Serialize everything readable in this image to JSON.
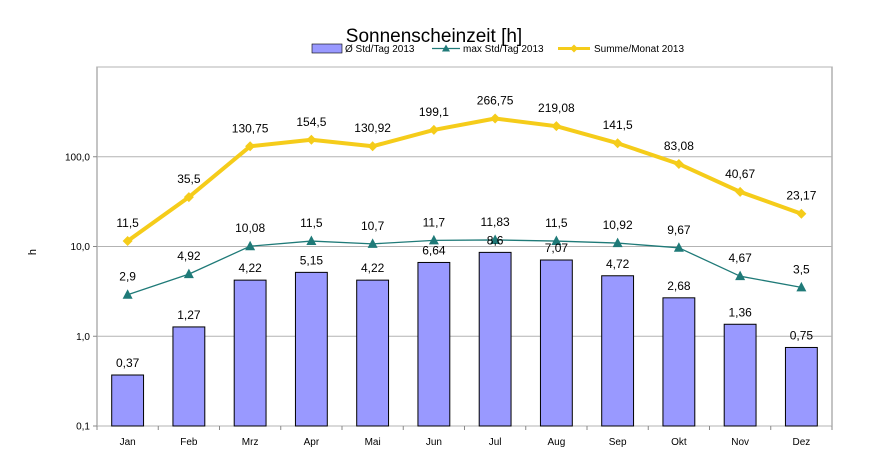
{
  "chart_data": {
    "type": "bar",
    "title": "Sonnenscheinzeit [h]",
    "xlabel": "",
    "ylabel": "h",
    "y_scale": "log",
    "ylim": [
      0.1,
      1000
    ],
    "y_ticks": [
      0.1,
      1,
      10,
      100
    ],
    "y_tick_labels": [
      "0,1",
      "1,0",
      "10,0",
      "100,0"
    ],
    "grid": true,
    "legend_position": "top",
    "categories": [
      "Jan",
      "Feb",
      "Mrz",
      "Apr",
      "Mai",
      "Jun",
      "Jul",
      "Aug",
      "Sep",
      "Okt",
      "Nov",
      "Dez"
    ],
    "series": [
      {
        "name": "Ø  Std/Tag 2013",
        "type": "bar",
        "color": "#9999ff",
        "values": [
          0.37,
          1.27,
          4.22,
          5.15,
          4.22,
          6.64,
          8.6,
          7.07,
          4.72,
          2.68,
          1.36,
          0.75
        ],
        "labels": [
          "0,37",
          "1,27",
          "4,22",
          "5,15",
          "4,22",
          "6,64",
          "8,6",
          "7,07",
          "4,72",
          "2,68",
          "1,36",
          "0,75"
        ]
      },
      {
        "name": "max Std/Tag 2013",
        "type": "line",
        "marker": "triangle",
        "color": "#1f7a78",
        "values": [
          2.9,
          4.92,
          10.08,
          11.5,
          10.7,
          11.7,
          11.83,
          11.5,
          10.92,
          9.67,
          4.67,
          3.5
        ],
        "labels": [
          "2,9",
          "4,92",
          "10,08",
          "11,5",
          "10,7",
          "11,7",
          "11,83",
          "11,5",
          "10,92",
          "9,67",
          "4,67",
          "3,5"
        ]
      },
      {
        "name": "Summe/Monat 2013",
        "type": "line",
        "marker": "diamond",
        "color": "#f5cc1a",
        "values": [
          11.5,
          35.5,
          130.75,
          154.5,
          130.92,
          199.1,
          266.75,
          219.08,
          141.5,
          83.08,
          40.67,
          23.17
        ],
        "labels": [
          "11,5",
          "35,5",
          "130,75",
          "154,5",
          "130,92",
          "199,1",
          "266,75",
          "219,08",
          "141,5",
          "83,08",
          "40,67",
          "23,17"
        ]
      }
    ]
  }
}
